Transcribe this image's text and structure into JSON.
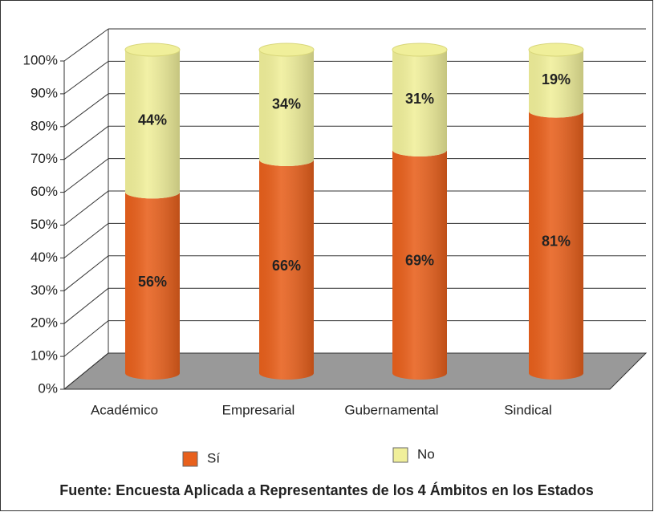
{
  "chart_data": {
    "type": "bar",
    "stacked": true,
    "categories": [
      "Académico",
      "Empresarial",
      "Gubernamental",
      "Sindical"
    ],
    "series": [
      {
        "name": "Sí",
        "color": "#e8601c",
        "values": [
          56,
          66,
          69,
          81
        ],
        "value_labels": [
          "56%",
          "66%",
          "69%",
          "81%"
        ]
      },
      {
        "name": "No",
        "color": "#f0ef9a",
        "values": [
          44,
          34,
          31,
          19
        ],
        "value_labels": [
          "44%",
          "34%",
          "31%",
          "19%"
        ]
      }
    ],
    "ylim": [
      0,
      100
    ],
    "yticks": [
      {
        "value": 0,
        "label": "0%"
      },
      {
        "value": 10,
        "label": "10%"
      },
      {
        "value": 20,
        "label": "20%"
      },
      {
        "value": 30,
        "label": "30%"
      },
      {
        "value": 40,
        "label": "40%"
      },
      {
        "value": 50,
        "label": "50%"
      },
      {
        "value": 60,
        "label": "60%"
      },
      {
        "value": 70,
        "label": "70%"
      },
      {
        "value": 80,
        "label": "80%"
      },
      {
        "value": 90,
        "label": "90%"
      },
      {
        "value": 100,
        "label": "100%"
      }
    ],
    "grid": true,
    "legend": "bottom",
    "source": "Fuente: Encuesta Aplicada a Representantes de los 4 Ámbitos en los Estados"
  }
}
